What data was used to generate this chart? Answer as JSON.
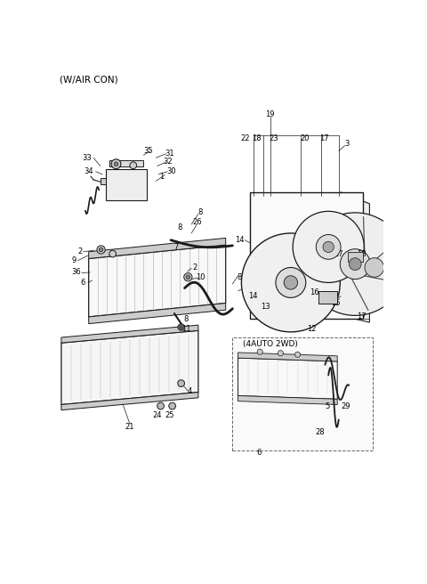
{
  "bg_color": "#ffffff",
  "line_color": "#1a1a1a",
  "text_color": "#000000",
  "fig_width": 4.8,
  "fig_height": 6.56,
  "dpi": 100
}
